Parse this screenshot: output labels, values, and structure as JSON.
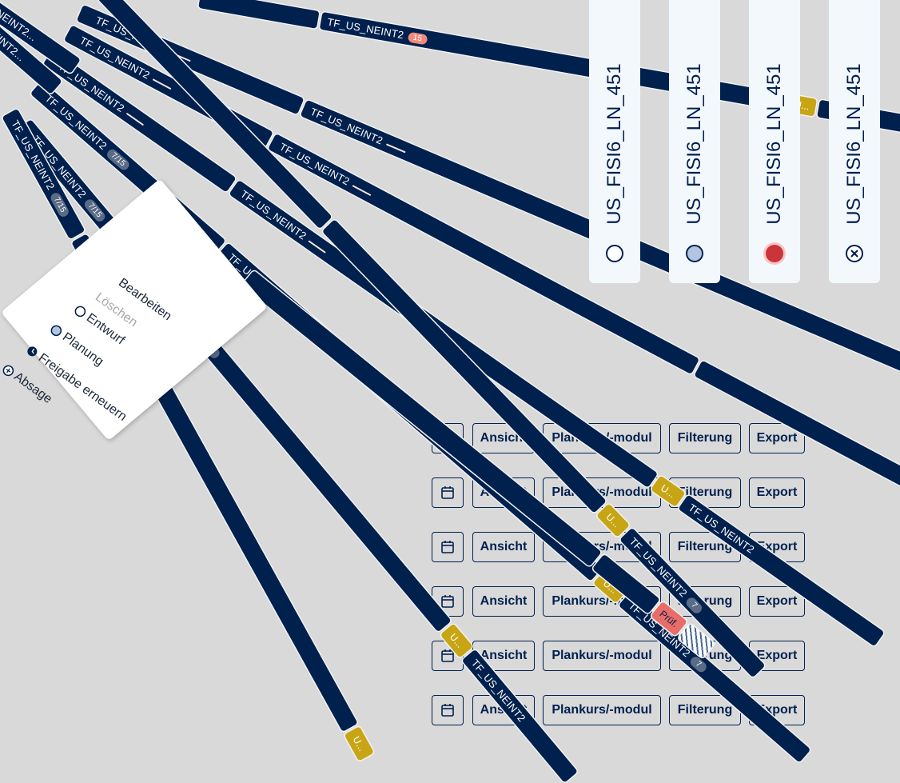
{
  "stripe_label": "TF_US_NEINT2",
  "stripe_label_cut": "NEINT2...",
  "stripe_label_cut2": "EINT2...",
  "badges": {
    "fifteen": "15",
    "seven_fifteen": "7/15",
    "gold_short": "U...",
    "pruef": "Prüf.",
    "seven": "7"
  },
  "cards": [
    {
      "label": "US_FISI6_LN_451",
      "status_icon": "circle-empty-icon"
    },
    {
      "label": "US_FISI6_LN_451",
      "status_icon": "circle-lightblue-icon"
    },
    {
      "label": "US_FISI6_LN_451",
      "status_icon": "circle-red-icon"
    },
    {
      "label": "US_FISI6_LN_451",
      "status_icon": "circle-x-icon"
    }
  ],
  "toolbar": {
    "calendar_icon": "calendar-icon",
    "ansicht": "Ansicht",
    "plankurs": "Plankurs/-modul",
    "filterung": "Filterung",
    "export": "Export"
  },
  "context_menu": {
    "edit": "Bearbeiten",
    "delete": "Löschen",
    "draft": "Entwurf",
    "planning": "Planung",
    "renew": "Freigabe erneuern",
    "cancel": "Absage"
  },
  "colors": {
    "navy": "#00204e",
    "gold": "#c8a515",
    "salmon": "#e86d68",
    "card": "#f3f8fd",
    "background": "#d9d9d9"
  }
}
